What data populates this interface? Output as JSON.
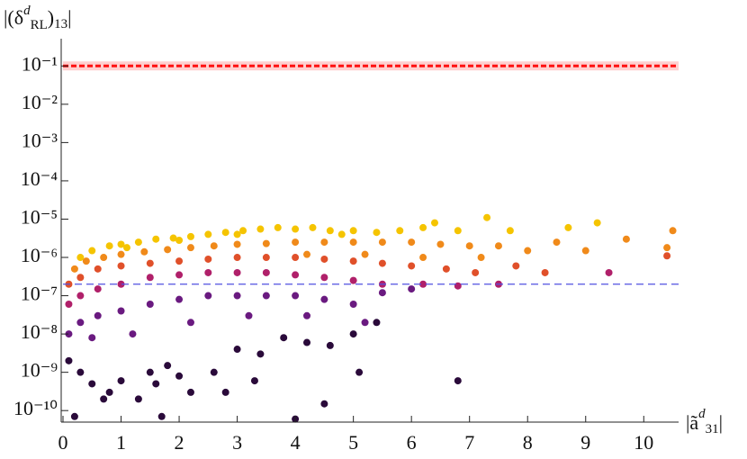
{
  "chart_data": {
    "type": "scatter",
    "y_label": [
      "|(δ",
      "d",
      "RL",
      ")",
      "13",
      "|"
    ],
    "x_label": [
      "|ã",
      "d",
      "31",
      "|"
    ],
    "xlim": [
      0,
      10.6
    ],
    "xticks": [
      0,
      1,
      2,
      3,
      4,
      5,
      6,
      7,
      8,
      9,
      10
    ],
    "yscale": "log",
    "ylim": [
      5e-11,
      0.3
    ],
    "yticks": [
      {
        "value": 1e-10,
        "label": "10⁻¹⁰"
      },
      {
        "value": 1e-09,
        "label": "10⁻⁹"
      },
      {
        "value": 1e-08,
        "label": "10⁻⁸"
      },
      {
        "value": 1e-07,
        "label": "10⁻⁷"
      },
      {
        "value": 1e-06,
        "label": "10⁻⁶"
      },
      {
        "value": 1e-05,
        "label": "10⁻⁵"
      },
      {
        "value": 0.0001,
        "label": "10⁻⁴"
      },
      {
        "value": 0.001,
        "label": "10⁻³"
      },
      {
        "value": 0.01,
        "label": "10⁻²"
      },
      {
        "value": 0.1,
        "label": "10⁻¹"
      }
    ],
    "hlines": [
      {
        "value": 0.1,
        "color": "#ff1010"
      },
      {
        "value": 2e-07,
        "color": "#5050e0"
      }
    ],
    "series": [
      {
        "color": "#2a0a3a",
        "x": [
          0.1,
          0.3,
          0.5,
          0.8,
          1.0,
          1.3,
          1.6,
          1.8,
          2.0,
          2.2,
          2.6,
          3.0,
          3.4,
          3.8,
          4.2,
          4.6,
          5.0,
          5.4,
          0.2,
          1.7,
          4.0,
          4.5,
          5.1,
          6.8,
          3.3,
          2.8,
          1.5,
          0.7
        ],
        "values": [
          2e-09,
          1e-09,
          5e-10,
          3e-10,
          6e-10,
          2e-10,
          5e-10,
          1.5e-09,
          8e-10,
          3e-10,
          1e-09,
          4e-09,
          3e-09,
          8e-09,
          6e-09,
          5e-09,
          1e-08,
          2e-08,
          7e-11,
          7e-11,
          6e-11,
          1.5e-10,
          1e-09,
          6e-10,
          6e-10,
          3e-10,
          1e-09,
          2e-10
        ]
      },
      {
        "color": "#6a1a80",
        "x": [
          0.1,
          0.3,
          0.6,
          1.0,
          1.5,
          2.0,
          2.5,
          3.0,
          3.5,
          4.0,
          4.5,
          5.0,
          5.5,
          6.0,
          0.5,
          1.2,
          2.2,
          3.2,
          4.2,
          5.2
        ],
        "values": [
          1e-08,
          2e-08,
          3e-08,
          4e-08,
          6e-08,
          8e-08,
          1e-07,
          1e-07,
          1e-07,
          1e-07,
          8e-08,
          6e-08,
          1.2e-07,
          1.5e-07,
          8e-09,
          1e-08,
          2e-08,
          3e-08,
          3e-08,
          2e-08
        ]
      },
      {
        "color": "#b0206a",
        "x": [
          0.1,
          0.3,
          0.6,
          1.0,
          1.5,
          2.0,
          2.5,
          3.0,
          3.5,
          4.0,
          4.5,
          5.0,
          5.5,
          6.2,
          6.8,
          9.4,
          7.5
        ],
        "values": [
          6e-08,
          1e-07,
          1.5e-07,
          2e-07,
          3e-07,
          3.5e-07,
          4e-07,
          4e-07,
          4e-07,
          3.5e-07,
          3e-07,
          2.5e-07,
          2e-07,
          2e-07,
          1.8e-07,
          4e-07,
          2e-07
        ]
      },
      {
        "color": "#e0502a",
        "x": [
          0.1,
          0.3,
          0.6,
          1.0,
          1.5,
          2.0,
          2.5,
          3.0,
          3.5,
          4.0,
          4.5,
          5.0,
          5.5,
          6.0,
          6.6,
          7.1,
          7.8,
          10.4,
          8.3
        ],
        "values": [
          2e-07,
          3e-07,
          5e-07,
          6e-07,
          7e-07,
          8e-07,
          9e-07,
          1e-06,
          1e-06,
          1e-06,
          9e-07,
          8e-07,
          7e-07,
          6e-07,
          5e-07,
          4e-07,
          6e-07,
          1.1e-06,
          4e-07
        ]
      },
      {
        "color": "#f08a1a",
        "x": [
          0.2,
          0.4,
          0.7,
          1.0,
          1.4,
          1.8,
          2.2,
          2.6,
          3.0,
          3.5,
          4.0,
          4.5,
          5.0,
          5.5,
          6.0,
          6.5,
          7.0,
          7.5,
          8.0,
          8.5,
          9.0,
          10.5,
          10.4,
          9.7,
          7.2,
          6.2,
          5.2,
          4.2
        ],
        "values": [
          5e-07,
          8e-07,
          1e-06,
          1.2e-06,
          1.4e-06,
          1.6e-06,
          1.8e-06,
          2e-06,
          2.2e-06,
          2.3e-06,
          2.5e-06,
          2.5e-06,
          2.5e-06,
          2.5e-06,
          2.5e-06,
          2.2e-06,
          2e-06,
          2e-06,
          1.5e-06,
          2.5e-06,
          1.5e-06,
          5e-06,
          1.8e-06,
          3e-06,
          1e-06,
          1e-06,
          1.2e-06,
          1.2e-06
        ]
      },
      {
        "color": "#f5c400",
        "x": [
          0.3,
          0.5,
          0.8,
          1.0,
          1.3,
          1.6,
          1.9,
          2.2,
          2.5,
          2.8,
          3.1,
          3.4,
          3.7,
          4.0,
          4.3,
          4.6,
          5.0,
          5.4,
          5.8,
          6.2,
          6.4,
          7.3,
          6.8,
          7.7,
          8.7,
          9.2,
          1.1,
          2.0,
          3.0,
          4.8
        ],
        "values": [
          1e-06,
          1.5e-06,
          2e-06,
          2.2e-06,
          2.5e-06,
          3e-06,
          3.2e-06,
          3.5e-06,
          4e-06,
          4.5e-06,
          5e-06,
          5.5e-06,
          6e-06,
          5.5e-06,
          6e-06,
          5e-06,
          5e-06,
          4.5e-06,
          5e-06,
          6e-06,
          8e-06,
          1.1e-05,
          5e-06,
          5e-06,
          6e-06,
          8e-06,
          1.8e-06,
          2.8e-06,
          4e-06,
          4e-06
        ]
      }
    ]
  }
}
